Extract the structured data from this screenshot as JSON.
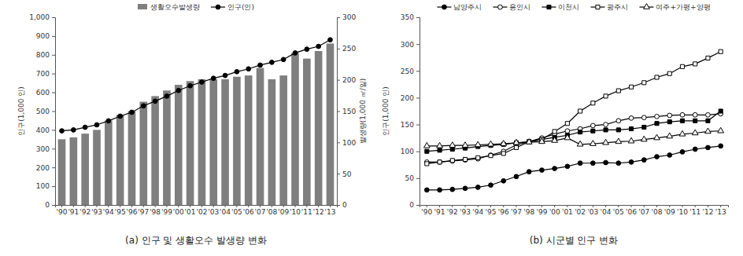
{
  "chart_data": [
    {
      "type": "bar",
      "title": "(a) 인구 및 생활오수 발생량 변화",
      "categories": [
        "'90",
        "'91",
        "'92",
        "'93",
        "'94",
        "'95",
        "'96",
        "'97",
        "'98",
        "'99",
        "'00",
        "'01",
        "'02",
        "'03",
        "'04",
        "'05",
        "'06",
        "'07",
        "'08",
        "'09",
        "'10",
        "'11",
        "'12",
        "'13"
      ],
      "ylabel": "인구(1,000 인)",
      "y2label": "발생량(1,000 ㎥/일)",
      "ylim": [
        0,
        1000
      ],
      "yticks": [
        0,
        100,
        200,
        300,
        400,
        500,
        600,
        700,
        800,
        900,
        {
          "value": 1000,
          "label": "1,000"
        }
      ],
      "y2lim": [
        0,
        300
      ],
      "y2ticks": [
        0,
        50,
        100,
        150,
        200,
        250,
        300
      ],
      "legend": "top",
      "grid": false,
      "series": [
        {
          "name": "생활오수발생량",
          "type": "bar",
          "axis": "y2",
          "color": "#7f7f7f",
          "values": [
            105,
            108,
            114,
            120,
            135,
            144,
            150,
            165,
            174,
            183,
            192,
            198,
            201,
            201,
            201,
            205,
            207,
            219,
            201,
            207,
            243,
            234,
            246,
            258
          ]
        },
        {
          "name": "인구(인)",
          "type": "line",
          "color": "#000000",
          "marker": "circle",
          "values": [
            395,
            400,
            414,
            427,
            448,
            473,
            494,
            528,
            553,
            580,
            610,
            635,
            655,
            675,
            690,
            710,
            725,
            745,
            760,
            775,
            810,
            830,
            845,
            880
          ]
        }
      ]
    },
    {
      "type": "line",
      "title": "(b) 시군별 인구 변화",
      "categories": [
        "'90",
        "'91",
        "'92",
        "'93",
        "'94",
        "'95",
        "'96",
        "'97",
        "'98",
        "'99",
        "'00",
        "'01",
        "'02",
        "'03",
        "'04",
        "'05",
        "'06",
        "'07",
        "'08",
        "'09",
        "'10",
        "'11",
        "'12",
        "'13"
      ],
      "ylabel": "인구(1,000 인)",
      "ylim": [
        0,
        350
      ],
      "yticks": [
        0,
        50,
        100,
        150,
        200,
        250,
        300,
        350
      ],
      "legend": "top",
      "grid": false,
      "series": [
        {
          "name": "남양주시",
          "color": "#000000",
          "marker": "circle",
          "values": [
            28,
            28,
            29,
            31,
            33,
            37,
            45,
            53,
            62,
            65,
            68,
            72,
            78,
            78,
            79,
            78,
            80,
            84,
            90,
            93,
            99,
            104,
            107,
            110
          ]
        },
        {
          "name": "용인시",
          "color": "#000000",
          "marker": "circle-open",
          "values": [
            80,
            80,
            82,
            84,
            86,
            93,
            100,
            112,
            118,
            125,
            132,
            138,
            142,
            148,
            150,
            157,
            162,
            163,
            165,
            167,
            168,
            168,
            168,
            170
          ]
        },
        {
          "name": "이천시",
          "color": "#000000",
          "marker": "square",
          "values": [
            100,
            102,
            104,
            106,
            109,
            111,
            113,
            116,
            118,
            122,
            126,
            130,
            136,
            138,
            140,
            140,
            142,
            145,
            152,
            155,
            157,
            157,
            157,
            175
          ]
        },
        {
          "name": "광주시",
          "color": "#000000",
          "marker": "square-open",
          "values": [
            77,
            80,
            83,
            85,
            88,
            92,
            96,
            107,
            118,
            122,
            137,
            152,
            175,
            190,
            203,
            213,
            220,
            228,
            238,
            245,
            258,
            263,
            274,
            286
          ]
        },
        {
          "name": "여주+가평+양평",
          "color": "#000000",
          "marker": "triangle-open",
          "values": [
            110,
            110,
            111,
            111,
            112,
            113,
            114,
            116,
            117,
            118,
            120,
            125,
            113,
            114,
            116,
            118,
            119,
            122,
            125,
            128,
            132,
            134,
            137,
            138
          ]
        }
      ]
    }
  ]
}
